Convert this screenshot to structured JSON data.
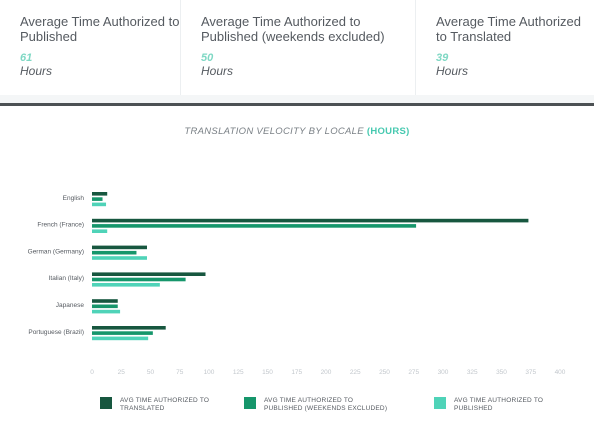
{
  "stats": [
    {
      "title": "Average Time Authorized to Published",
      "value": "61",
      "unit": "Hours"
    },
    {
      "title": "Average Time Authorized to Published (weekends excluded)",
      "value": "50",
      "unit": "Hours"
    },
    {
      "title": "Average Time Authorized to Translated",
      "value": "39",
      "unit": "Hours"
    }
  ],
  "chart": {
    "title_prefix": "TRANSLATION VELOCITY BY LOCALE",
    "title_highlight": "(HOURS)"
  },
  "legend": [
    {
      "label": "AVG TIME AUTHORIZED TO TRANSLATED",
      "color": "#17573f"
    },
    {
      "label": "AVG TIME AUTHORIZED TO PUBLISHED  (WEEKENDS EXCLUDED)",
      "color": "#16966b"
    },
    {
      "label": "AVG TIME AUTHORIZED TO PUBLISHED",
      "color": "#4fd3b8"
    }
  ],
  "colors": {
    "accent": "#47c9b0",
    "dark_divider": "#4c5154"
  },
  "chart_data": {
    "type": "bar",
    "orientation": "horizontal",
    "title": "TRANSLATION VELOCITY BY LOCALE (HOURS)",
    "categories": [
      "English",
      "French (France)",
      "German (Germany)",
      "Italian (Italy)",
      "Japanese",
      "Portuguese (Brazil)"
    ],
    "series": [
      {
        "name": "AVG TIME AUTHORIZED TO TRANSLATED",
        "color": "#17573f",
        "values": [
          13,
          373,
          47,
          97,
          22,
          63
        ]
      },
      {
        "name": "AVG TIME AUTHORIZED TO PUBLISHED (WEEKENDS EXCLUDED)",
        "color": "#16966b",
        "values": [
          9,
          277,
          38,
          80,
          22,
          52
        ]
      },
      {
        "name": "AVG TIME AUTHORIZED TO PUBLISHED",
        "color": "#4fd3b8",
        "values": [
          12,
          13,
          47,
          58,
          24,
          48
        ]
      }
    ],
    "xticks": [
      0,
      25,
      50,
      75,
      100,
      125,
      150,
      175,
      200,
      225,
      250,
      275,
      300,
      325,
      350,
      375,
      400
    ],
    "xlim": [
      0,
      400
    ],
    "grid": false,
    "legend_position": "bottom"
  }
}
